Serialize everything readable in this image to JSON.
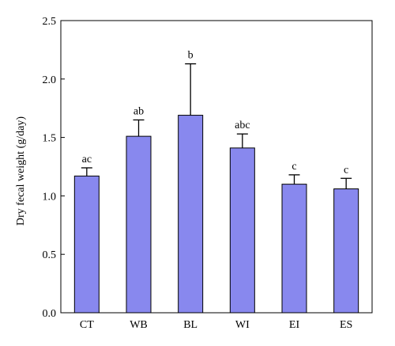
{
  "chart_data": {
    "type": "bar",
    "title": "",
    "xlabel": "",
    "ylabel": "Dry fecal weight (g/day)",
    "ylim": [
      0,
      2.5
    ],
    "yticks": [
      0.0,
      0.5,
      1.0,
      1.5,
      2.0,
      2.5
    ],
    "ytick_labels": [
      "0.0",
      "0.5",
      "1.0",
      "1.5",
      "2.0",
      "2.5"
    ],
    "categories": [
      "CT",
      "WB",
      "BL",
      "WI",
      "EI",
      "ES"
    ],
    "values": [
      1.17,
      1.51,
      1.69,
      1.41,
      1.1,
      1.06
    ],
    "errors": [
      0.07,
      0.14,
      0.44,
      0.12,
      0.08,
      0.09
    ],
    "significance_labels": [
      "ac",
      "ab",
      "b",
      "abc",
      "c",
      "c"
    ],
    "bar_color": "#8888ee",
    "bar_edge_color": "#000000",
    "grid": false,
    "legend": "none"
  }
}
